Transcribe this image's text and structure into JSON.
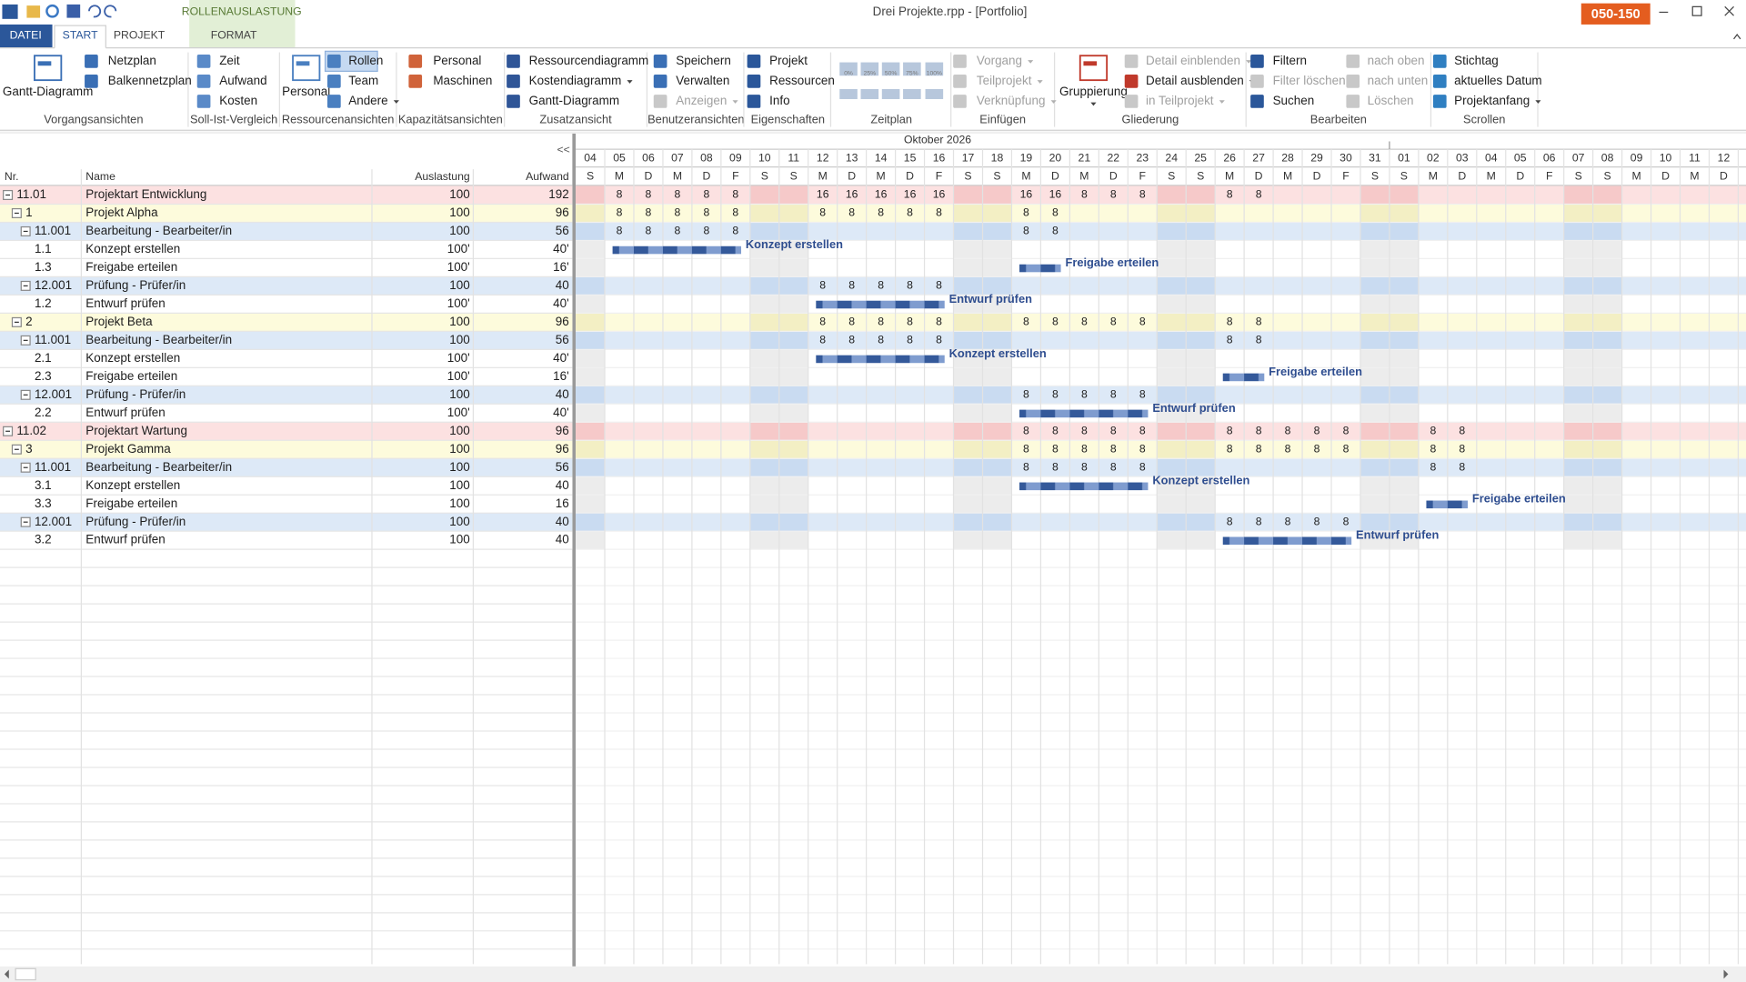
{
  "window": {
    "title": "Drei Projekte.rpp - [Portfolio]",
    "context_tab": "ROLLENAUSLASTUNG",
    "badge": "050-150"
  },
  "tabs": [
    "DATEI",
    "START",
    "PROJEKT",
    "FORMAT"
  ],
  "ribbon": {
    "groups": [
      {
        "label": "Vorgangsansichten",
        "big": "Gantt-Diagramm",
        "items": [
          "Netzplan",
          "Balkennetzplan"
        ]
      },
      {
        "label": "Soll-Ist-Vergleich",
        "items": [
          "Zeit",
          "Aufwand",
          "Kosten"
        ]
      },
      {
        "label": "Ressourcenansichten",
        "big": "Personal",
        "items": [
          "Rollen",
          "Team",
          "Andere"
        ]
      },
      {
        "label": "Kapazitätsansichten",
        "items": [
          "Personal",
          "Maschinen"
        ]
      },
      {
        "label": "Zusatzansicht",
        "items": [
          "Ressourcendiagramm",
          "Kostendiagramm",
          "Gantt-Diagramm"
        ]
      },
      {
        "label": "Benutzeransichten",
        "items": [
          "Speichern",
          "Verwalten",
          "Anzeigen"
        ]
      },
      {
        "label": "Eigenschaften",
        "items": [
          "Projekt",
          "Ressourcen",
          "Info"
        ]
      },
      {
        "label": "Zeitplan",
        "items": [
          "0%",
          "25%",
          "50%",
          "75%",
          "100%"
        ]
      },
      {
        "label": "Einfügen",
        "items": [
          "Vorgang",
          "Teilprojekt",
          "Verknüpfung"
        ]
      },
      {
        "label": "Gliederung",
        "big": "Gruppierung",
        "items": [
          "Detail einblenden",
          "Detail ausblenden",
          "in Teilprojekt"
        ]
      },
      {
        "label": "Bearbeiten",
        "items": [
          "Filtern",
          "Filter löschen",
          "Suchen",
          "nach oben",
          "nach unten",
          "Löschen"
        ]
      },
      {
        "label": "Scrollen",
        "items": [
          "Stichtag",
          "aktuelles Datum",
          "Projektanfang"
        ]
      }
    ]
  },
  "table": {
    "collapse": "<<",
    "columns": [
      "Nr.",
      "Name",
      "Auslastung",
      "Aufwand"
    ],
    "rows": [
      {
        "nr": "11.01",
        "name": "Projektart Entwicklung",
        "load": "100",
        "effort": "192",
        "kind": "group",
        "hours": [
          null,
          8,
          8,
          8,
          8,
          8,
          null,
          null,
          16,
          16,
          16,
          16,
          16,
          null,
          null,
          16,
          16,
          8,
          8,
          8,
          null,
          null,
          8,
          8,
          null,
          null,
          null,
          null,
          null,
          null,
          null,
          null,
          null,
          null,
          null,
          null,
          null,
          null,
          null,
          null
        ]
      },
      {
        "nr": "1",
        "name": "Projekt Alpha",
        "load": "100",
        "effort": "96",
        "kind": "project",
        "hours": [
          null,
          8,
          8,
          8,
          8,
          8,
          null,
          null,
          8,
          8,
          8,
          8,
          8,
          null,
          null,
          8,
          8,
          null,
          null,
          null,
          null,
          null,
          null,
          null,
          null,
          null,
          null,
          null,
          null,
          null,
          null,
          null,
          null,
          null,
          null,
          null,
          null,
          null,
          null,
          null
        ]
      },
      {
        "nr": "11.001",
        "name": "Bearbeitung - Bearbeiter/in",
        "load": "100",
        "effort": "56",
        "kind": "role",
        "hours": [
          null,
          8,
          8,
          8,
          8,
          8,
          null,
          null,
          null,
          null,
          null,
          null,
          null,
          null,
          null,
          8,
          8,
          null,
          null,
          null,
          null,
          null,
          null,
          null,
          null,
          null,
          null,
          null,
          null,
          null,
          null,
          null,
          null,
          null,
          null,
          null,
          null,
          null,
          null,
          null
        ]
      },
      {
        "nr": "1.1",
        "name": "Konzept erstellen",
        "load": "100'",
        "effort": "40'",
        "kind": "task",
        "bar": {
          "label": "Konzept erstellen",
          "start": 1,
          "end": 5
        }
      },
      {
        "nr": "1.3",
        "name": "Freigabe erteilen",
        "load": "100'",
        "effort": "16'",
        "kind": "task",
        "bar": {
          "label": "Freigabe erteilen",
          "start": 15,
          "end": 16
        }
      },
      {
        "nr": "12.001",
        "name": "Prüfung - Prüfer/in",
        "load": "100",
        "effort": "40",
        "kind": "role",
        "hours": [
          null,
          null,
          null,
          null,
          null,
          null,
          null,
          null,
          8,
          8,
          8,
          8,
          8,
          null,
          null,
          null,
          null,
          null,
          null,
          null,
          null,
          null,
          null,
          null,
          null,
          null,
          null,
          null,
          null,
          null,
          null,
          null,
          null,
          null,
          null,
          null,
          null,
          null,
          null,
          null
        ]
      },
      {
        "nr": "1.2",
        "name": "Entwurf prüfen",
        "load": "100'",
        "effort": "40'",
        "kind": "task",
        "bar": {
          "label": "Entwurf prüfen",
          "start": 8,
          "end": 12
        }
      },
      {
        "nr": "2",
        "name": "Projekt Beta",
        "load": "100",
        "effort": "96",
        "kind": "project",
        "hours": [
          null,
          null,
          null,
          null,
          null,
          null,
          null,
          null,
          8,
          8,
          8,
          8,
          8,
          null,
          null,
          8,
          8,
          8,
          8,
          8,
          null,
          null,
          8,
          8,
          null,
          null,
          null,
          null,
          null,
          null,
          null,
          null,
          null,
          null,
          null,
          null,
          null,
          null,
          null,
          null
        ]
      },
      {
        "nr": "11.001",
        "name": "Bearbeitung - Bearbeiter/in",
        "load": "100",
        "effort": "56",
        "kind": "role",
        "hours": [
          null,
          null,
          null,
          null,
          null,
          null,
          null,
          null,
          8,
          8,
          8,
          8,
          8,
          null,
          null,
          null,
          null,
          null,
          null,
          null,
          null,
          null,
          8,
          8,
          null,
          null,
          null,
          null,
          null,
          null,
          null,
          null,
          null,
          null,
          null,
          null,
          null,
          null,
          null,
          null
        ]
      },
      {
        "nr": "2.1",
        "name": "Konzept erstellen",
        "load": "100'",
        "effort": "40'",
        "kind": "task",
        "bar": {
          "label": "Konzept erstellen",
          "start": 8,
          "end": 12
        }
      },
      {
        "nr": "2.3",
        "name": "Freigabe erteilen",
        "load": "100'",
        "effort": "16'",
        "kind": "task",
        "bar": {
          "label": "Freigabe erteilen",
          "start": 22,
          "end": 23
        }
      },
      {
        "nr": "12.001",
        "name": "Prüfung - Prüfer/in",
        "load": "100",
        "effort": "40",
        "kind": "role",
        "hours": [
          null,
          null,
          null,
          null,
          null,
          null,
          null,
          null,
          null,
          null,
          null,
          null,
          null,
          null,
          null,
          8,
          8,
          8,
          8,
          8,
          null,
          null,
          null,
          null,
          null,
          null,
          null,
          null,
          null,
          null,
          null,
          null,
          null,
          null,
          null,
          null,
          null,
          null,
          null,
          null
        ]
      },
      {
        "nr": "2.2",
        "name": "Entwurf prüfen",
        "load": "100'",
        "effort": "40'",
        "kind": "task",
        "bar": {
          "label": "Entwurf prüfen",
          "start": 15,
          "end": 19
        }
      },
      {
        "nr": "11.02",
        "name": "Projektart Wartung",
        "load": "100",
        "effort": "96",
        "kind": "group",
        "hours": [
          null,
          null,
          null,
          null,
          null,
          null,
          null,
          null,
          null,
          null,
          null,
          null,
          null,
          null,
          null,
          8,
          8,
          8,
          8,
          8,
          null,
          null,
          8,
          8,
          8,
          8,
          8,
          null,
          null,
          8,
          8,
          null,
          null,
          null,
          null,
          null,
          null,
          null,
          null,
          null
        ]
      },
      {
        "nr": "3",
        "name": "Projekt Gamma",
        "load": "100",
        "effort": "96",
        "kind": "project",
        "hours": [
          null,
          null,
          null,
          null,
          null,
          null,
          null,
          null,
          null,
          null,
          null,
          null,
          null,
          null,
          null,
          8,
          8,
          8,
          8,
          8,
          null,
          null,
          8,
          8,
          8,
          8,
          8,
          null,
          null,
          8,
          8,
          null,
          null,
          null,
          null,
          null,
          null,
          null,
          null,
          null
        ]
      },
      {
        "nr": "11.001",
        "name": "Bearbeitung - Bearbeiter/in",
        "load": "100",
        "effort": "56",
        "kind": "role",
        "hours": [
          null,
          null,
          null,
          null,
          null,
          null,
          null,
          null,
          null,
          null,
          null,
          null,
          null,
          null,
          null,
          8,
          8,
          8,
          8,
          8,
          null,
          null,
          null,
          null,
          null,
          null,
          null,
          null,
          null,
          8,
          8,
          null,
          null,
          null,
          null,
          null,
          null,
          null,
          null,
          null
        ]
      },
      {
        "nr": "3.1",
        "name": "Konzept erstellen",
        "load": "100",
        "effort": "40",
        "kind": "task",
        "bar": {
          "label": "Konzept erstellen",
          "start": 15,
          "end": 19
        }
      },
      {
        "nr": "3.3",
        "name": "Freigabe erteilen",
        "load": "100",
        "effort": "16",
        "kind": "task",
        "bar": {
          "label": "Freigabe erteilen",
          "start": 29,
          "end": 30
        }
      },
      {
        "nr": "12.001",
        "name": "Prüfung - Prüfer/in",
        "load": "100",
        "effort": "40",
        "kind": "role",
        "hours": [
          null,
          null,
          null,
          null,
          null,
          null,
          null,
          null,
          null,
          null,
          null,
          null,
          null,
          null,
          null,
          null,
          null,
          null,
          null,
          null,
          null,
          null,
          8,
          8,
          8,
          8,
          8,
          null,
          null,
          null,
          null,
          null,
          null,
          null,
          null,
          null,
          null,
          null,
          null,
          null
        ]
      },
      {
        "nr": "3.2",
        "name": "Entwurf prüfen",
        "load": "100",
        "effort": "40",
        "kind": "task",
        "bar": {
          "label": "Entwurf prüfen",
          "start": 22,
          "end": 26
        }
      }
    ]
  },
  "gantt": {
    "month": "Oktober 2026",
    "days": [
      "04",
      "05",
      "06",
      "07",
      "08",
      "09",
      "10",
      "11",
      "12",
      "13",
      "14",
      "15",
      "16",
      "17",
      "18",
      "19",
      "20",
      "21",
      "22",
      "23",
      "24",
      "25",
      "26",
      "27",
      "28",
      "29",
      "30",
      "31",
      "01",
      "02",
      "03",
      "04",
      "05",
      "06",
      "07",
      "08",
      "09",
      "10",
      "11",
      "12"
    ],
    "weekdays": [
      "S",
      "M",
      "D",
      "M",
      "D",
      "F",
      "S",
      "S",
      "M",
      "D",
      "M",
      "D",
      "F",
      "S",
      "S",
      "M",
      "D",
      "M",
      "D",
      "F",
      "S",
      "S",
      "M",
      "D",
      "M",
      "D",
      "F",
      "S",
      "S",
      "M",
      "D",
      "M",
      "D",
      "F",
      "S",
      "S",
      "M",
      "D",
      "M",
      "D"
    ]
  }
}
